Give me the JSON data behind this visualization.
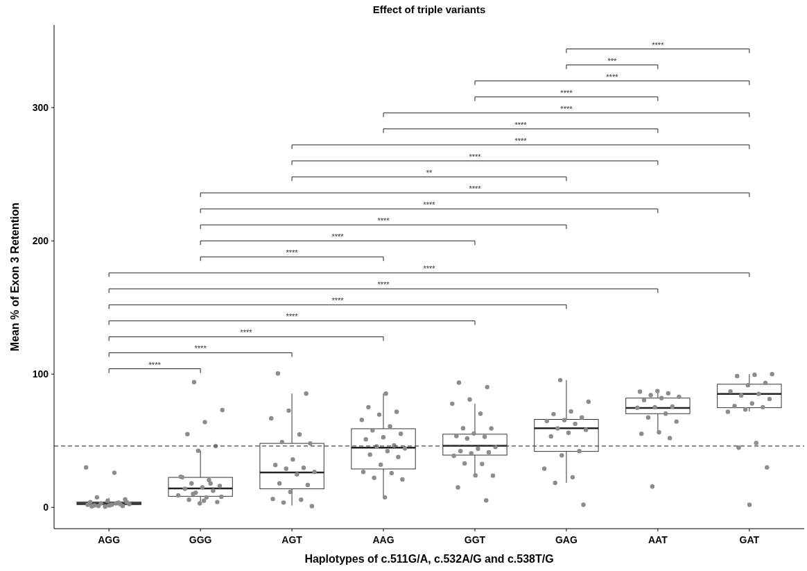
{
  "chart_data": {
    "type": "box",
    "title": "Effect of triple variants",
    "xlabel": "Haplotypes of c.511G/A, c.532A/G and c.538T/G",
    "ylabel": "Mean % of Exon 3 Retention",
    "categories": [
      "AGG",
      "GGG",
      "AGT",
      "AAG",
      "GGT",
      "GAG",
      "AAT",
      "GAT"
    ],
    "ylim": [
      -16,
      362
    ],
    "yticks": [
      0,
      100,
      200,
      300
    ],
    "grid": false,
    "boxes": [
      {
        "low": 0,
        "q1": 2,
        "median": 3,
        "q3": 4,
        "high": 7
      },
      {
        "low": 2,
        "q1": 8.3,
        "median": 14.2,
        "q3": 22.5,
        "high": 42.7
      },
      {
        "low": 1.4,
        "q1": 13.9,
        "median": 26.2,
        "q3": 48,
        "high": 85.4
      },
      {
        "low": 7.5,
        "q1": 28.8,
        "median": 44.8,
        "q3": 59,
        "high": 85.4
      },
      {
        "low": 24,
        "q1": 39.2,
        "median": 46.2,
        "q3": 54.9,
        "high": 77.8
      },
      {
        "low": 18.4,
        "q1": 42,
        "median": 59.4,
        "q3": 66,
        "high": 95.5
      },
      {
        "low": 55.5,
        "q1": 70.3,
        "median": 74.6,
        "q3": 82,
        "high": 87.3
      },
      {
        "low": 72,
        "q1": 74.8,
        "median": 85.2,
        "q3": 92.4,
        "high": 100
      }
    ],
    "series": [
      {
        "type": "scatter",
        "color": "#8c8c8c",
        "marker": "circle",
        "x": [
          "AGG",
          "AGG",
          "AGG",
          "AGG",
          "AGG",
          "AGG",
          "AGG",
          "AGG",
          "AGG",
          "AGG",
          "AGG",
          "AGG",
          "AGG",
          "AGG",
          "AGG",
          "AGG",
          "AGG",
          "AGG",
          "AGG",
          "AGG",
          "GGG",
          "GGG",
          "GGG",
          "GGG",
          "GGG",
          "GGG",
          "GGG",
          "GGG",
          "GGG",
          "GGG",
          "GGG",
          "GGG",
          "GGG",
          "GGG",
          "GGG",
          "GGG",
          "GGG",
          "GGG",
          "GGG",
          "GGG",
          "GGG",
          "GGG",
          "GGG",
          "GGG",
          "AGT",
          "AGT",
          "AGT",
          "AGT",
          "AGT",
          "AGT",
          "AGT",
          "AGT",
          "AGT",
          "AGT",
          "AGT",
          "AGT",
          "AGT",
          "AGT",
          "AGT",
          "AGT",
          "AGT",
          "AGT",
          "AGT",
          "AGT",
          "AAG",
          "AAG",
          "AAG",
          "AAG",
          "AAG",
          "AAG",
          "AAG",
          "AAG",
          "AAG",
          "AAG",
          "AAG",
          "AAG",
          "AAG",
          "AAG",
          "AAG",
          "AAG",
          "AAG",
          "AAG",
          "AAG",
          "AAG",
          "AAG",
          "AAG",
          "GGT",
          "GGT",
          "GGT",
          "GGT",
          "GGT",
          "GGT",
          "GGT",
          "GGT",
          "GGT",
          "GGT",
          "GGT",
          "GGT",
          "GGT",
          "GGT",
          "GGT",
          "GGT",
          "GGT",
          "GGT",
          "GGT",
          "GGT",
          "GGT",
          "GGT",
          "GGT",
          "GAG",
          "GAG",
          "GAG",
          "GAG",
          "GAG",
          "GAG",
          "GAG",
          "GAG",
          "GAG",
          "GAG",
          "GAG",
          "GAG",
          "GAG",
          "GAG",
          "GAG",
          "GAG",
          "GAG",
          "GAG",
          "AAT",
          "AAT",
          "AAT",
          "AAT",
          "AAT",
          "AAT",
          "AAT",
          "AAT",
          "AAT",
          "AAT",
          "AAT",
          "AAT",
          "AAT",
          "AAT",
          "AAT",
          "AAT",
          "AAT",
          "GAT",
          "GAT",
          "GAT",
          "GAT",
          "GAT",
          "GAT",
          "GAT",
          "GAT",
          "GAT",
          "GAT",
          "GAT",
          "GAT",
          "GAT",
          "GAT",
          "GAT",
          "GAT",
          "GAT",
          "GAT"
        ],
        "values": [
          30,
          26,
          7.5,
          6,
          5,
          4,
          3.5,
          3,
          2.5,
          2,
          1.5,
          1,
          0.5,
          2,
          3,
          1,
          4,
          1.5,
          0.8,
          2.5,
          94,
          73,
          64,
          55,
          46,
          42.5,
          23,
          20.5,
          18,
          16,
          15,
          14,
          12.5,
          11,
          9,
          7.5,
          5.7,
          4,
          3,
          22.6,
          18,
          10,
          8,
          5,
          100.5,
          85.4,
          72.6,
          66.8,
          54.7,
          49,
          48,
          36,
          31.8,
          29.7,
          29,
          26.6,
          24.8,
          18,
          16.8,
          11.6,
          6.3,
          5.7,
          3.6,
          0.9,
          85.4,
          75.2,
          71.7,
          69.6,
          65.6,
          60.8,
          57.8,
          55.2,
          52.6,
          51,
          46.5,
          45.7,
          44.3,
          42.2,
          39.6,
          37.8,
          32,
          26.6,
          25.7,
          22.2,
          21,
          7.5,
          93.6,
          90.3,
          81,
          77.8,
          70.3,
          59.4,
          59.2,
          55.4,
          53.5,
          53,
          51.7,
          45.3,
          44,
          42.2,
          41.3,
          40.5,
          38.7,
          32.6,
          33,
          23.8,
          24,
          15,
          5.2,
          95.5,
          79.3,
          72,
          70,
          67.4,
          65.5,
          64.8,
          62.7,
          59.2,
          58.2,
          56,
          53.3,
          42.2,
          39,
          29,
          22.6,
          18.4,
          2,
          87.3,
          86.8,
          85.6,
          84.2,
          83,
          82,
          80.4,
          75.7,
          75.2,
          74.7,
          70.3,
          67.4,
          64.4,
          56.4,
          55.2,
          52,
          15.6,
          100,
          99.5,
          98.6,
          93.4,
          91.7,
          87,
          85.2,
          84,
          81.3,
          78,
          76,
          75.2,
          73.4,
          71.7,
          48.3,
          44.8,
          30,
          2
        ]
      }
    ],
    "ref_lines": [
      {
        "axis": "y",
        "value": 46,
        "line_style": "dashed",
        "color": "#444444"
      }
    ],
    "annotations": [
      "****",
      "****",
      "****",
      "****",
      "****",
      "****",
      "****",
      "****",
      "****",
      "****",
      "****",
      "****",
      "**",
      "****",
      "****",
      "****",
      "****",
      "****",
      "****",
      "***",
      "****"
    ]
  }
}
